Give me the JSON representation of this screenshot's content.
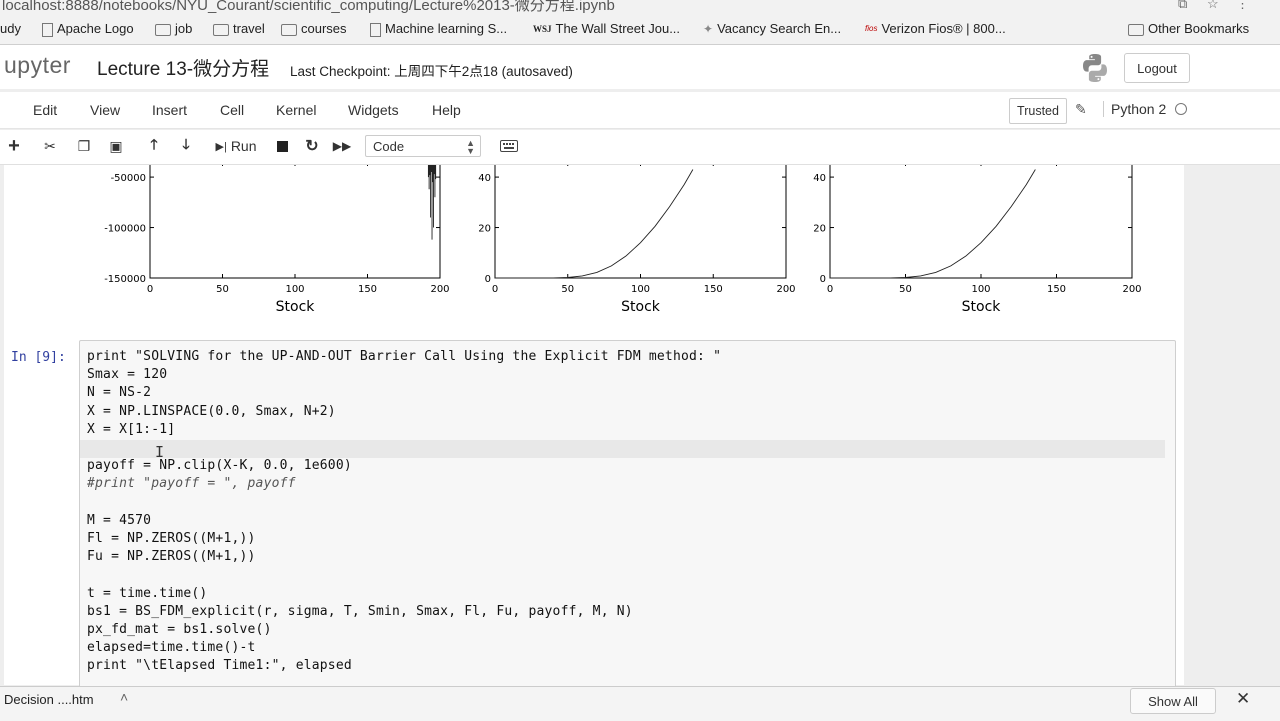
{
  "browser": {
    "url": "localhost:8888/notebooks/NYU_Courant/scientific_computing/Lecture%2013-微分方程.ipynb",
    "bookmarks": [
      {
        "label": "udy",
        "icon": "none"
      },
      {
        "label": "Apache Logo",
        "icon": "page-icon"
      },
      {
        "label": "job",
        "icon": "folder-icon"
      },
      {
        "label": "travel",
        "icon": "folder-icon"
      },
      {
        "label": "courses",
        "icon": "folder-icon"
      },
      {
        "label": "Machine learning S...",
        "icon": "page-icon"
      },
      {
        "label": "The Wall Street Jou...",
        "icon": "wsj-icon"
      },
      {
        "label": "Vacancy Search En...",
        "icon": "runner-icon"
      },
      {
        "label": "Verizon Fios® | 800...",
        "icon": "fios-icon"
      },
      {
        "label": "Other Bookmarks",
        "icon": "folder-icon"
      }
    ]
  },
  "jupyter": {
    "logo_text": "upyter",
    "notebook_title": "Lecture 13-微分方程",
    "checkpoint": "Last Checkpoint: 上周四下午2点18  (autosaved)",
    "logout": "Logout",
    "trusted": "Trusted",
    "kernel": "Python 2",
    "menu": [
      "Edit",
      "View",
      "Insert",
      "Cell",
      "Kernel",
      "Widgets",
      "Help"
    ],
    "toolbar": {
      "run_label": "Run",
      "cell_type": "Code",
      "icons": [
        "add-cell-icon",
        "cut-icon",
        "copy-icon",
        "paste-icon",
        "move-up-icon",
        "move-down-icon",
        "run-icon",
        "stop-icon",
        "restart-icon",
        "fast-forward-icon",
        "keyboard-icon"
      ]
    }
  },
  "chart_data": [
    {
      "type": "line",
      "xlabel": "Stock",
      "xticks": [
        "0",
        "50",
        "100",
        "150",
        "200"
      ],
      "yticks": [
        "-50000",
        "-100000",
        "-150000"
      ],
      "xlim": [
        0,
        200
      ],
      "ylim": [
        -150000,
        -40000
      ],
      "series": [
        {
          "x": [
            192,
            192.5,
            193,
            193.5,
            194,
            194.5,
            195,
            195.5,
            196,
            196.5,
            197
          ],
          "y": [
            -50000,
            -62000,
            -48000,
            -90000,
            -45000,
            -112000,
            -55000,
            -100000,
            -47000,
            -70000,
            -52000
          ]
        }
      ]
    },
    {
      "type": "line",
      "xlabel": "Stock",
      "xticks": [
        "0",
        "50",
        "100",
        "150",
        "200"
      ],
      "yticks": [
        "0",
        "20",
        "40"
      ],
      "xlim": [
        0,
        200
      ],
      "ylim": [
        0,
        44
      ],
      "series": [
        {
          "x": [
            0,
            40,
            50,
            60,
            70,
            80,
            90,
            100,
            110,
            120,
            130,
            136
          ],
          "y": [
            0,
            0,
            0.2,
            0.8,
            2.2,
            4.8,
            8.7,
            14.0,
            20.5,
            28.3,
            37.0,
            43.0
          ]
        }
      ]
    },
    {
      "type": "line",
      "xlabel": "Stock",
      "xticks": [
        "0",
        "50",
        "100",
        "150",
        "200"
      ],
      "yticks": [
        "0",
        "20",
        "40"
      ],
      "xlim": [
        0,
        200
      ],
      "ylim": [
        0,
        44
      ],
      "series": [
        {
          "x": [
            0,
            40,
            50,
            60,
            70,
            80,
            90,
            100,
            110,
            120,
            130,
            136
          ],
          "y": [
            0,
            0,
            0.2,
            0.8,
            2.2,
            4.8,
            8.7,
            14.0,
            20.5,
            28.3,
            37.0,
            43.0
          ]
        }
      ]
    }
  ],
  "cell": {
    "prompt": "In [9]:",
    "lines": [
      "print \"SOLVING for the UP-AND-OUT Barrier Call Using the Explicit FDM method: \"",
      "Smax = 120",
      "N = NS-2",
      "X = NP.LINSPACE(0.0, Smax, N+2)",
      "X = X[1:-1]",
      "",
      "payoff = NP.clip(X-K, 0.0, 1e600)",
      "#print \"payoff = \", payoff",
      "",
      "M = 4570",
      "Fl = NP.ZEROS((M+1,))",
      "Fu = NP.ZEROS((M+1,))",
      "",
      "t = time.time()",
      "bs1 = BS_FDM_explicit(r, sigma, T, Smin, Smax, Fl, Fu, payoff, M, N)",
      "px_fd_mat = bs1.solve()",
      "elapsed=time.time()-t",
      "print \"\\tElapsed Time1:\", elapsed"
    ]
  },
  "downloads": {
    "item": "Decision ....htm",
    "more": "˄",
    "show_all": "Show All"
  }
}
